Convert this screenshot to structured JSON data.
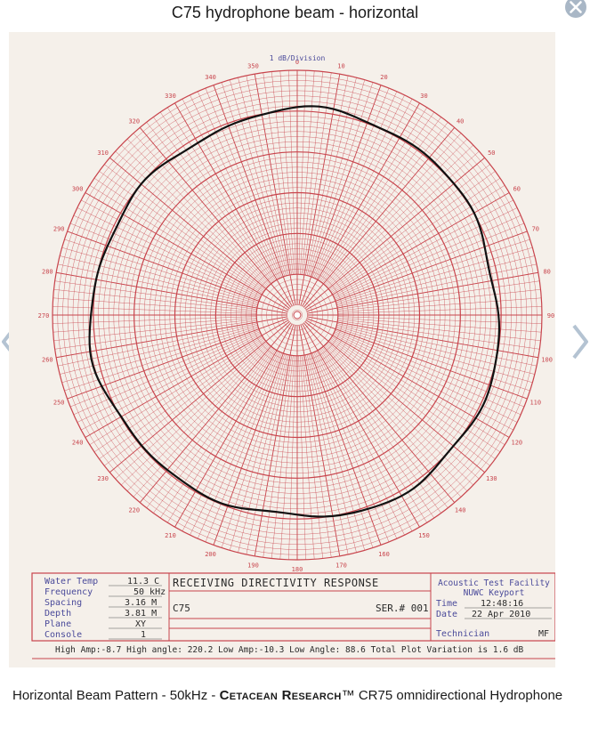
{
  "viewer": {
    "title": "C75 hydrophone beam - horizontal",
    "close_icon": "close-icon",
    "prev_icon": "chevron-left-icon",
    "next_icon": "chevron-right-icon"
  },
  "plot": {
    "scale_label": "1 dB/Division",
    "angles": [
      "0",
      "10",
      "20",
      "30",
      "40",
      "50",
      "60",
      "70",
      "80",
      "90",
      "100",
      "110",
      "120",
      "130",
      "140",
      "150",
      "160",
      "170",
      "180",
      "190",
      "200",
      "210",
      "220",
      "230",
      "240",
      "250",
      "260",
      "270",
      "280",
      "290",
      "300",
      "310",
      "320",
      "330",
      "340",
      "350"
    ],
    "grid_color": "#c8444c",
    "trace_color": "#111111",
    "paper_color": "#f5f0ea"
  },
  "info": {
    "water_temp_label": "Water Temp",
    "water_temp_value": "11.3 C",
    "frequency_label": "Frequency",
    "frequency_value": "50 kHz",
    "spacing_label": "Spacing",
    "spacing_value": "3.16 M",
    "depth_label": "Depth",
    "depth_value": "3.81 M",
    "plane_label": "Plane",
    "plane_value": "XY",
    "console_label": "Console",
    "console_value": "1",
    "response_title": "RECEIVING DIRECTIVITY RESPONSE",
    "model": "C75",
    "serial": "SER.# 001",
    "facility_line1": "Acoustic Test Facility",
    "facility_line2": "NUWC Keyport",
    "time_label": "Time",
    "time_value": "12:48:16",
    "date_label": "Date",
    "date_value": "22 Apr 2010",
    "technician_label": "Technician",
    "technician_value": "MF",
    "summary": "High Amp:-8.7 High angle: 220.2 Low Amp:-10.3 Low Angle: 88.6  Total Plot Variation is  1.6  dB"
  },
  "caption": {
    "prefix": "Horizontal Beam Pattern - 50kHz - ",
    "brand": "Cetacean Research",
    "suffix": "™ CR75 omnidirectional Hydrophone"
  }
}
